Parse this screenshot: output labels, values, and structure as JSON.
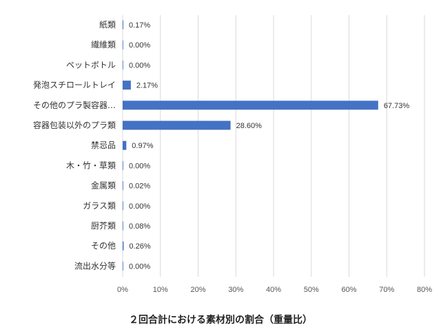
{
  "chart_data": {
    "type": "bar",
    "orientation": "horizontal",
    "title": "２回合計における素材別の割合（重量比）",
    "categories": [
      "紙類",
      "繊維類",
      "ペットボトル",
      "発泡スチロールトレイ",
      "その他のプラ製容器…",
      "容器包装以外のプラ類",
      "禁忌品",
      "木・竹・草類",
      "金属類",
      "ガラス類",
      "厨芥類",
      "その他",
      "流出水分等"
    ],
    "values": [
      0.17,
      0.0,
      0.0,
      2.17,
      67.73,
      28.6,
      0.97,
      0.0,
      0.02,
      0.0,
      0.08,
      0.26,
      0.0
    ],
    "data_labels": [
      "0.17%",
      "0.00%",
      "0.00%",
      "2.17%",
      "67.73%",
      "28.60%",
      "0.97%",
      "0.00%",
      "0.02%",
      "0.00%",
      "0.08%",
      "0.26%",
      "0.00%"
    ],
    "xlim": [
      0,
      80
    ],
    "x_ticks": [
      "0%",
      "10%",
      "20%",
      "30%",
      "40%",
      "50%",
      "60%",
      "70%",
      "80%"
    ],
    "grid": true,
    "legend": "none",
    "bar_color": "#4472c4"
  }
}
